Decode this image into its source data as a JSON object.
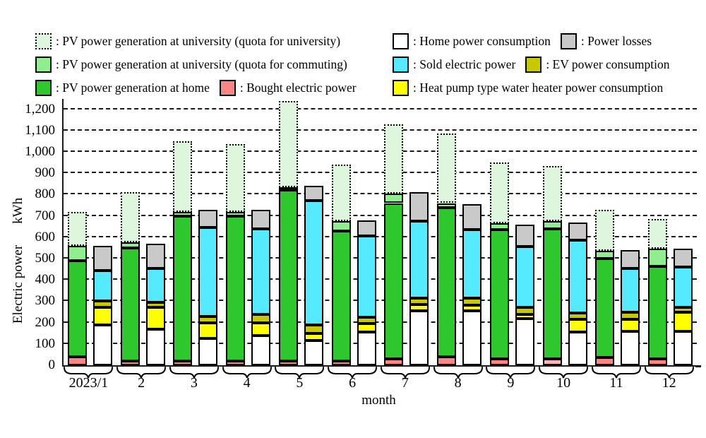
{
  "colors": {
    "pv_university": "#def6de",
    "pv_commuting": "#90ee90",
    "pv_home": "#2ec82e",
    "bought": "#fa8585",
    "bought_light": "#ffb5b5",
    "home_consumption": "#ffffff",
    "sold": "#55eaff",
    "heater": "#ffff00",
    "ev": "#c8c800",
    "losses": "#c9c9c9",
    "axis": "#1a1a1a"
  },
  "legend": {
    "left": [
      [
        {
          "key": "pv_university",
          "dotted": true,
          "label": ": PV power generation at university (quota for university)"
        }
      ],
      [
        {
          "key": "pv_commuting",
          "dotted": false,
          "label": ": PV power generation at university (quota for commuting)"
        }
      ],
      [
        {
          "key": "pv_home",
          "dotted": false,
          "label": ": PV power generation at home"
        },
        {
          "key": "bought",
          "dotted": false,
          "label": ": Bought electric  power"
        }
      ]
    ],
    "right": [
      [
        {
          "key": "home_consumption",
          "dotted": false,
          "label": ": Home power consumption"
        },
        {
          "key": "losses",
          "dotted": false,
          "label": ": Power losses"
        }
      ],
      [
        {
          "key": "sold",
          "dotted": false,
          "label": ": Sold electric power"
        },
        {
          "key": "ev",
          "dotted": false,
          "label": ": EV power consumption"
        }
      ],
      [
        {
          "key": "heater",
          "dotted": false,
          "label": ": Heat pump type water heater power consumption"
        }
      ]
    ]
  },
  "chart_data": {
    "type": "bar",
    "stacked": true,
    "unit": "kWh",
    "xlabel": "month",
    "ylabel": "Electric power",
    "ylabel_unit": "kWh",
    "ylim": [
      0,
      1240
    ],
    "ytick_step": 100,
    "ytick_max": 1200,
    "grid": "dashed horizontal every 100 kWh",
    "legend_position": "top",
    "categories": [
      "2023/1",
      "2",
      "3",
      "4",
      "5",
      "6",
      "7",
      "8",
      "9",
      "10",
      "11",
      "12"
    ],
    "generation_stack": [
      {
        "name": "Bought electric power",
        "color_key": "bought",
        "dotted": false,
        "values": [
          40,
          20,
          20,
          20,
          20,
          20,
          30,
          40,
          30,
          30,
          35,
          30
        ]
      },
      {
        "name": "PV power generation at home",
        "color_key": "pv_home",
        "dotted": false,
        "values": [
          450,
          530,
          680,
          680,
          800,
          610,
          730,
          700,
          605,
          610,
          465,
          435
        ]
      },
      {
        "name": "PV power generation at university (quota for commuting)",
        "color_key": "pv_commuting",
        "dotted": false,
        "values": [
          70,
          25,
          20,
          20,
          15,
          45,
          45,
          20,
          30,
          35,
          35,
          80
        ]
      },
      {
        "name": "PV power generation at university (quota for university)",
        "color_key": "pv_university",
        "dotted": true,
        "values": [
          160,
          235,
          330,
          315,
          405,
          265,
          325,
          325,
          285,
          260,
          195,
          140
        ]
      }
    ],
    "consumption_stack": [
      {
        "name": "Home power consumption",
        "color_key": "home_consumption",
        "dotted": false,
        "values": [
          190,
          170,
          125,
          140,
          115,
          155,
          255,
          255,
          220,
          155,
          160,
          160
        ]
      },
      {
        "name": "Heat pump type water heater power consumption",
        "color_key": "heater",
        "dotted": false,
        "values": [
          80,
          100,
          75,
          60,
          35,
          40,
          30,
          25,
          20,
          60,
          55,
          90
        ]
      },
      {
        "name": "EV power consumption",
        "color_key": "ev",
        "dotted": false,
        "values": [
          30,
          25,
          30,
          40,
          40,
          30,
          30,
          35,
          30,
          30,
          35,
          20
        ]
      },
      {
        "name": "Sold electric power",
        "color_key": "sold",
        "dotted": false,
        "values": [
          145,
          160,
          415,
          400,
          580,
          380,
          360,
          320,
          285,
          340,
          205,
          190
        ]
      },
      {
        "name": "Power losses",
        "color_key": "losses",
        "dotted": false,
        "values": [
          115,
          115,
          85,
          90,
          70,
          75,
          135,
          120,
          105,
          85,
          85,
          85
        ]
      }
    ],
    "color_overrides": [
      {
        "stack": "generation_stack",
        "series": "Bought electric power",
        "category_index": 9,
        "color_key": "bought_light"
      }
    ]
  }
}
